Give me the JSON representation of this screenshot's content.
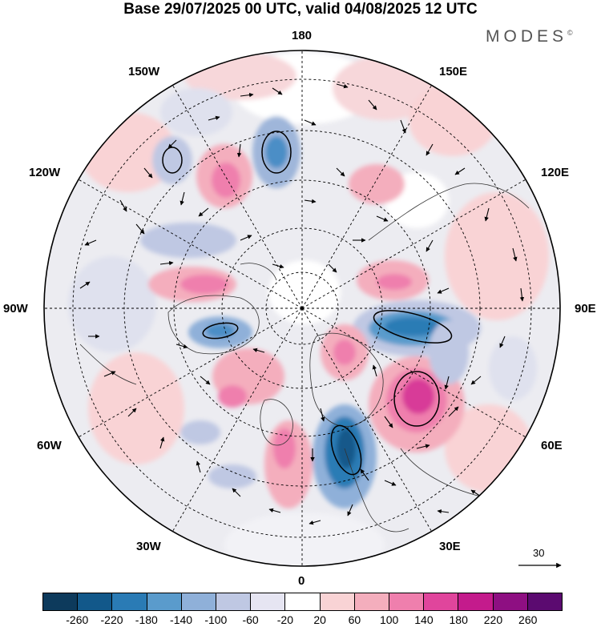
{
  "title": "Base 29/07/2025 00 UTC, valid 04/08/2025 12 UTC",
  "brand": "MODES",
  "brand_mark": "©",
  "longitude_labels": {
    "lon_180": "180",
    "lon_150w": "150W",
    "lon_150e": "150E",
    "lon_120w": "120W",
    "lon_120e": "120E",
    "lon_90w": "90W",
    "lon_90e": "90E",
    "lon_60w": "60W",
    "lon_60e": "60E",
    "lon_30w": "30W",
    "lon_30e": "30E",
    "lon_0": "0"
  },
  "reference_vector": {
    "label": "30"
  },
  "colorbar": {
    "ticks": [
      "-260",
      "-220",
      "-180",
      "-140",
      "-100",
      "-60",
      "-20",
      "20",
      "60",
      "100",
      "140",
      "180",
      "220",
      "260"
    ],
    "colors": [
      "#0d3a5c",
      "#12588a",
      "#2a7bb5",
      "#5a9bcc",
      "#8fb0d9",
      "#bfc8e3",
      "#e6e5f2",
      "#ffffff",
      "#f9d3d5",
      "#f4aebd",
      "#ef7fad",
      "#e0459c",
      "#c41b8c",
      "#8e0f82",
      "#5b0a70"
    ]
  }
}
